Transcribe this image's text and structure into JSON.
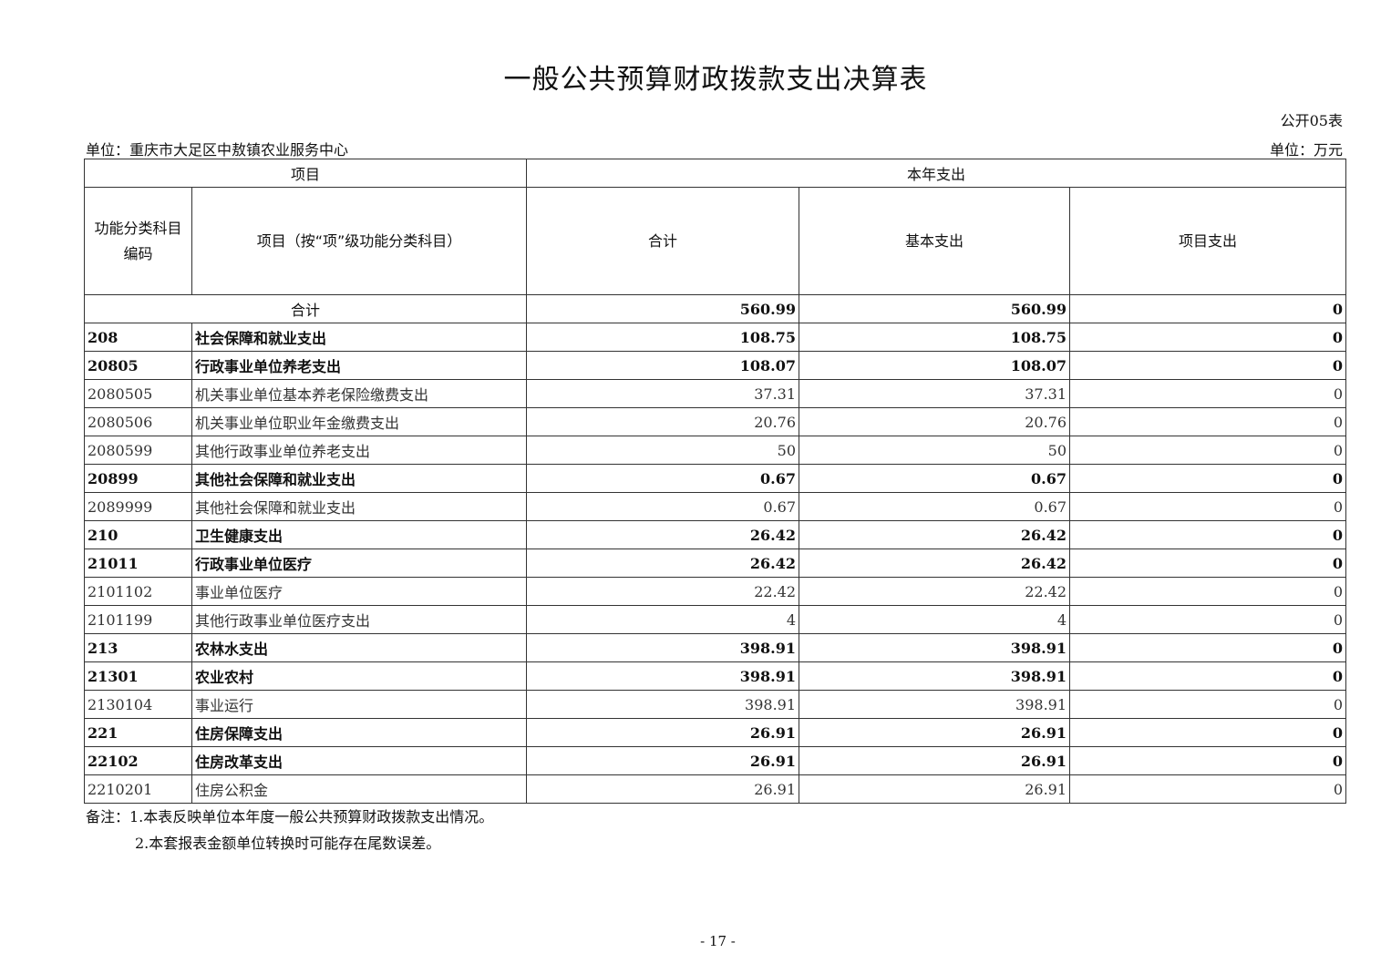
{
  "title": "一般公共预算财政拨款支出决算表",
  "table_no": "公开05表",
  "unit_org": "单位：重庆市大足区中敖镇农业服务中心",
  "unit_money": "单位：万元",
  "headers": {
    "item": "项目",
    "current_year": "本年支出",
    "code": "功能分类科目编码",
    "name": "项目（按“项”级功能分类科目）",
    "total": "合计",
    "basic": "基本支出",
    "project": "项目支出"
  },
  "total_row": {
    "label": "合计",
    "total": "560.99",
    "basic": "560.99",
    "project": "0"
  },
  "rows": [
    {
      "code": "208",
      "name": "社会保障和就业支出",
      "total": "108.75",
      "basic": "108.75",
      "project": "0",
      "bold": true
    },
    {
      "code": "20805",
      "name": "行政事业单位养老支出",
      "total": "108.07",
      "basic": "108.07",
      "project": "0",
      "bold": true
    },
    {
      "code": "2080505",
      "name": "机关事业单位基本养老保险缴费支出",
      "total": "37.31",
      "basic": "37.31",
      "project": "0",
      "bold": false
    },
    {
      "code": "2080506",
      "name": "机关事业单位职业年金缴费支出",
      "total": "20.76",
      "basic": "20.76",
      "project": "0",
      "bold": false
    },
    {
      "code": "2080599",
      "name": "其他行政事业单位养老支出",
      "total": "50",
      "basic": "50",
      "project": "0",
      "bold": false
    },
    {
      "code": "20899",
      "name": "其他社会保障和就业支出",
      "total": "0.67",
      "basic": "0.67",
      "project": "0",
      "bold": true
    },
    {
      "code": "2089999",
      "name": "其他社会保障和就业支出",
      "total": "0.67",
      "basic": "0.67",
      "project": "0",
      "bold": false
    },
    {
      "code": "210",
      "name": "卫生健康支出",
      "total": "26.42",
      "basic": "26.42",
      "project": "0",
      "bold": true
    },
    {
      "code": "21011",
      "name": "行政事业单位医疗",
      "total": "26.42",
      "basic": "26.42",
      "project": "0",
      "bold": true
    },
    {
      "code": "2101102",
      "name": "事业单位医疗",
      "total": "22.42",
      "basic": "22.42",
      "project": "0",
      "bold": false
    },
    {
      "code": "2101199",
      "name": "其他行政事业单位医疗支出",
      "total": "4",
      "basic": "4",
      "project": "0",
      "bold": false
    },
    {
      "code": "213",
      "name": "农林水支出",
      "total": "398.91",
      "basic": "398.91",
      "project": "0",
      "bold": true
    },
    {
      "code": "21301",
      "name": "农业农村",
      "total": "398.91",
      "basic": "398.91",
      "project": "0",
      "bold": true
    },
    {
      "code": "2130104",
      "name": "事业运行",
      "total": "398.91",
      "basic": "398.91",
      "project": "0",
      "bold": false
    },
    {
      "code": "221",
      "name": "住房保障支出",
      "total": "26.91",
      "basic": "26.91",
      "project": "0",
      "bold": true
    },
    {
      "code": "22102",
      "name": "住房改革支出",
      "total": "26.91",
      "basic": "26.91",
      "project": "0",
      "bold": true
    },
    {
      "code": "2210201",
      "name": "住房公积金",
      "total": "26.91",
      "basic": "26.91",
      "project": "0",
      "bold": false
    }
  ],
  "notes": [
    "备注：1.本表反映单位本年度一般公共预算财政拨款支出情况。",
    "2.本套报表金额单位转换时可能存在尾数误差。"
  ],
  "page_number": "- 17 -"
}
